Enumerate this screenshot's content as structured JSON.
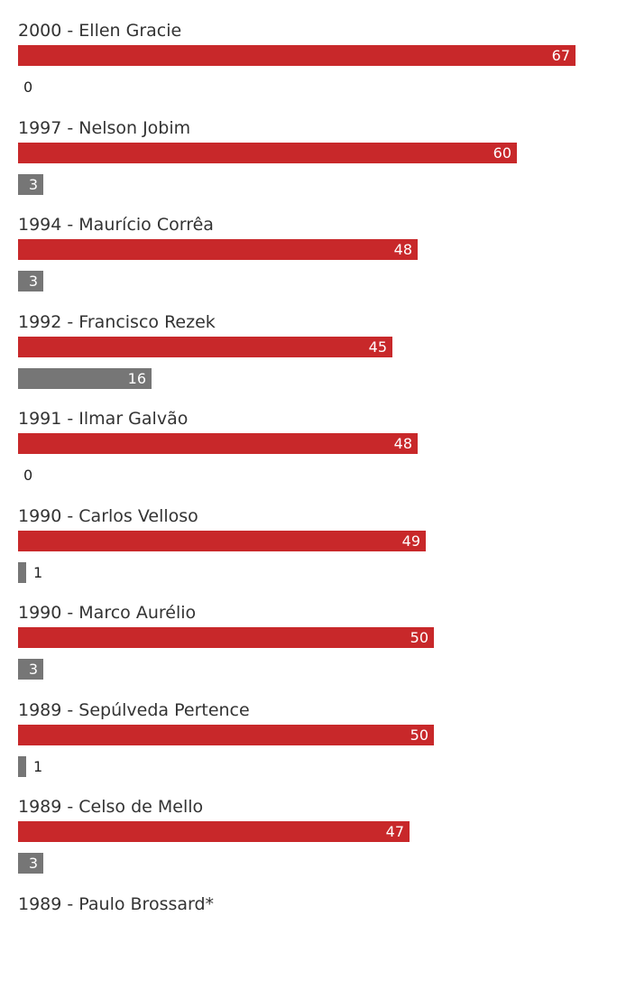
{
  "chart_data": {
    "type": "bar",
    "orientation": "horizontal",
    "colors": {
      "yes": "#c8282a",
      "no": "#767676"
    },
    "max_value": 67,
    "rows": [
      {
        "label": "2000 - Ellen Gracie",
        "yes": 67,
        "no": 0
      },
      {
        "label": "1997 - Nelson Jobim",
        "yes": 60,
        "no": 3
      },
      {
        "label": "1994 - Maurício Corrêa",
        "yes": 48,
        "no": 3
      },
      {
        "label": "1992 - Francisco Rezek",
        "yes": 45,
        "no": 16
      },
      {
        "label": "1991 - Ilmar Galvão",
        "yes": 48,
        "no": 0
      },
      {
        "label": "1990 - Carlos Velloso",
        "yes": 49,
        "no": 1
      },
      {
        "label": "1990 - Marco Aurélio",
        "yes": 50,
        "no": 3
      },
      {
        "label": "1989 - Sepúlveda Pertence",
        "yes": 50,
        "no": 1
      },
      {
        "label": "1989 - Celso de Mello",
        "yes": 47,
        "no": 3
      },
      {
        "label": "1989 - Paulo Brossard*",
        "yes": null,
        "no": null
      }
    ]
  }
}
